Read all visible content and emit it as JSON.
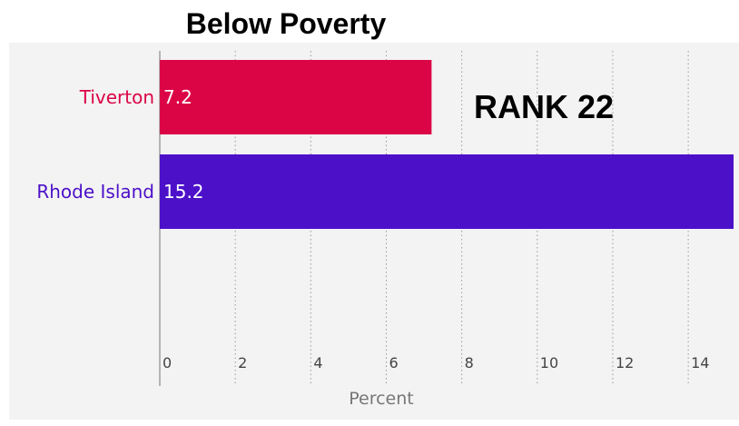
{
  "chart_data": {
    "type": "bar",
    "orientation": "horizontal",
    "title": "Below Poverty",
    "annotation": "RANK 22",
    "categories": [
      "Tiverton",
      "Rhode Island"
    ],
    "values": [
      7.2,
      15.2
    ],
    "value_labels": [
      "7.2",
      "15.2"
    ],
    "colors": [
      "#db0546",
      "#4c10c9"
    ],
    "xlabel": "Percent",
    "ylabel": "",
    "xlim": [
      0,
      15.2
    ],
    "xticks": [
      0,
      2,
      4,
      6,
      8,
      10,
      12,
      14
    ],
    "grid": "vertical dotted",
    "legend": "none"
  }
}
